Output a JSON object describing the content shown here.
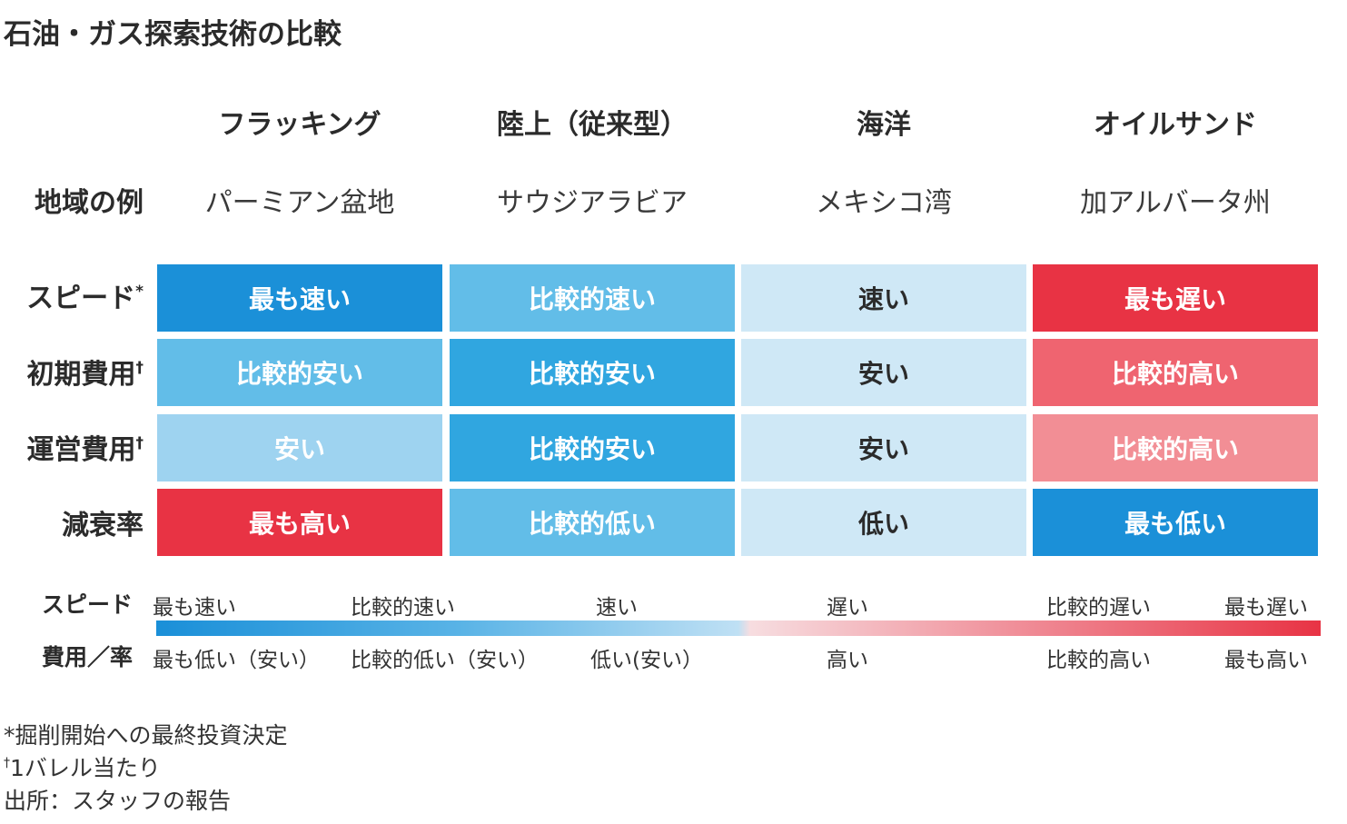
{
  "title": "石油・ガス探索技術の比較",
  "columns": [
    "フラッキング",
    "陸上（従来型）",
    "海洋",
    "オイルサンド"
  ],
  "region_label": "地域の例",
  "regions": [
    "パーミアン盆地",
    "サウジアラビア",
    "メキシコ湾",
    "加アルバータ州"
  ],
  "rows": [
    {
      "label": "スピード",
      "mark": "*",
      "values": [
        "最も速い",
        "比較的速い",
        "速い",
        "最も遅い"
      ],
      "colors": [
        "#1b90d8",
        "#62bde8",
        "#cfe8f6",
        "#e83344"
      ],
      "text_colors": [
        "#ffffff",
        "#ffffff",
        "#2b2b2b",
        "#ffffff"
      ]
    },
    {
      "label": "初期費用",
      "mark": "†",
      "values": [
        "比較的安い",
        "比較的安い",
        "安い",
        "比較的高い"
      ],
      "colors": [
        "#62bde8",
        "#30a6e0",
        "#cfe8f6",
        "#ef6470"
      ],
      "text_colors": [
        "#ffffff",
        "#ffffff",
        "#2b2b2b",
        "#ffffff"
      ]
    },
    {
      "label": "運営費用",
      "mark": "†",
      "values": [
        "安い",
        "比較的安い",
        "安い",
        "比較的高い"
      ],
      "colors": [
        "#9ed3f0",
        "#30a6e0",
        "#cfe8f6",
        "#f28e95"
      ],
      "text_colors": [
        "#ffffff",
        "#ffffff",
        "#2b2b2b",
        "#ffffff"
      ]
    },
    {
      "label": "減衰率",
      "mark": "",
      "values": [
        "最も高い",
        "比較的低い",
        "低い",
        "最も低い"
      ],
      "colors": [
        "#e83344",
        "#62bde8",
        "#cfe8f6",
        "#1b90d8"
      ],
      "text_colors": [
        "#ffffff",
        "#ffffff",
        "#2b2b2b",
        "#ffffff"
      ]
    }
  ],
  "legend": {
    "speed_label": "スピード",
    "speed_scale": [
      "最も速い",
      "比較的速い",
      "速い",
      "遅い",
      "比較的遅い",
      "最も遅い"
    ],
    "cost_label": "費用／率",
    "cost_scale": [
      "最も低い（安い）",
      "比較的低い（安い）",
      "低い(安い）",
      "高い",
      "比較的高い",
      "最も高い"
    ]
  },
  "notes": [
    {
      "mark": "",
      "text": "*掘削開始への最終投資決定"
    },
    {
      "mark": "†",
      "text": "1バレル当たり"
    },
    {
      "mark": "",
      "text": "出所：スタッフの報告"
    }
  ],
  "chart_data": {
    "type": "table",
    "title": "石油・ガス探索技術の比較",
    "columns": [
      "フラッキング",
      "陸上（従来型）",
      "海洋",
      "オイルサンド"
    ],
    "rows": [
      {
        "name": "地域の例",
        "values": [
          "パーミアン盆地",
          "サウジアラビア",
          "メキシコ湾",
          "加アルバータ州"
        ]
      },
      {
        "name": "スピード*",
        "values": [
          "最も速い",
          "比較的速い",
          "速い",
          "最も遅い"
        ]
      },
      {
        "name": "初期費用†",
        "values": [
          "比較的安い",
          "比較的安い",
          "安い",
          "比較的高い"
        ]
      },
      {
        "name": "運営費用†",
        "values": [
          "安い",
          "比較的安い",
          "安い",
          "比較的高い"
        ]
      },
      {
        "name": "減衰率",
        "values": [
          "最も高い",
          "比較的低い",
          "低い",
          "最も低い"
        ]
      }
    ]
  }
}
